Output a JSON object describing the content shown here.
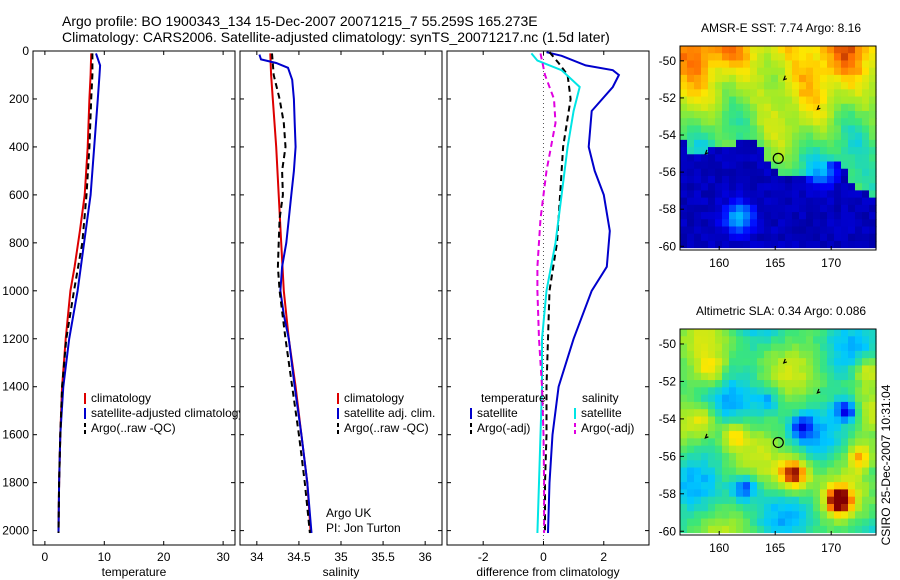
{
  "title": {
    "line1": "Argo profile: BO 1900343_134 15-Dec-2007 20071215_7 55.259S 165.273E",
    "line2": "Climatology: CARS2006. Satellite-adjusted climatology: synTS_20071217.nc (1.5d later)"
  },
  "side_label": "CSIRO 25-Dec-2007 10:31:04",
  "colors": {
    "red": "#dd0000",
    "blue": "#0000cc",
    "black": "#000000",
    "cyan": "#00e5e5",
    "magenta": "#e000e0"
  },
  "chart_data": [
    {
      "type": "line",
      "xlabel": "temperature",
      "xlim": [
        -2,
        32
      ],
      "xticks": [
        0,
        10,
        20,
        30
      ],
      "ylim": [
        2060,
        0
      ],
      "yticks": [
        0,
        200,
        400,
        600,
        800,
        1000,
        1200,
        1400,
        1600,
        1800,
        2000
      ],
      "legend": {
        "placement": "lower-left",
        "entries": [
          "climatology",
          "satellite-adjusted climatology",
          "Argo(..raw -QC)"
        ]
      },
      "series": [
        {
          "name": "climatology",
          "color": "red",
          "dash": "",
          "points": [
            [
              7.8,
              10
            ],
            [
              7.7,
              100
            ],
            [
              7.5,
              200
            ],
            [
              7.2,
              400
            ],
            [
              6.7,
              600
            ],
            [
              5.9,
              750
            ],
            [
              5.0,
              900
            ],
            [
              4.3,
              1000
            ],
            [
              3.5,
              1200
            ],
            [
              2.9,
              1400
            ],
            [
              2.6,
              1600
            ],
            [
              2.4,
              1800
            ],
            [
              2.3,
              2010
            ]
          ]
        },
        {
          "name": "satellite-adjusted climatology",
          "color": "blue",
          "dash": "",
          "points": [
            [
              8.6,
              10
            ],
            [
              9.3,
              60
            ],
            [
              9.2,
              100
            ],
            [
              8.9,
              200
            ],
            [
              8.3,
              400
            ],
            [
              7.7,
              600
            ],
            [
              6.6,
              800
            ],
            [
              5.5,
              1000
            ],
            [
              4.1,
              1200
            ],
            [
              3.1,
              1400
            ],
            [
              2.6,
              1600
            ],
            [
              2.4,
              1800
            ],
            [
              2.3,
              2010
            ]
          ]
        },
        {
          "name": "Argo(..raw -QC)",
          "color": "black",
          "dash": "6,4",
          "points": [
            [
              8.0,
              10
            ],
            [
              8.0,
              100
            ],
            [
              7.8,
              200
            ],
            [
              7.5,
              400
            ],
            [
              7.0,
              600
            ],
            [
              6.3,
              800
            ],
            [
              4.9,
              1000
            ],
            [
              3.6,
              1200
            ],
            [
              2.9,
              1400
            ],
            [
              2.6,
              1600
            ],
            [
              2.4,
              1800
            ],
            [
              2.3,
              2010
            ]
          ]
        }
      ]
    },
    {
      "type": "line",
      "xlabel": "salinity",
      "xlim": [
        33.8,
        36.2
      ],
      "xticks": [
        34,
        34.5,
        35,
        35.5,
        36
      ],
      "ylim": [
        2060,
        0
      ],
      "legend": {
        "placement": "lower-right",
        "entries": [
          "climatology",
          "satellite adj. clim.",
          "Argo(..raw -QC)"
        ]
      },
      "annotations": [
        "Argo UK",
        "PI: Jon Turton"
      ],
      "series": [
        {
          "name": "climatology",
          "color": "red",
          "dash": "",
          "points": [
            [
              34.16,
              10
            ],
            [
              34.17,
              100
            ],
            [
              34.19,
              200
            ],
            [
              34.21,
              300
            ],
            [
              34.23,
              400
            ],
            [
              34.26,
              600
            ],
            [
              34.29,
              800
            ],
            [
              34.32,
              1000
            ],
            [
              34.38,
              1200
            ],
            [
              34.46,
              1400
            ],
            [
              34.53,
              1600
            ],
            [
              34.6,
              1800
            ],
            [
              34.64,
              2010
            ]
          ]
        },
        {
          "name": "satellite adj. clim.",
          "color": "blue",
          "dash": "",
          "points": [
            [
              34.03,
              15
            ],
            [
              34.05,
              35
            ],
            [
              34.23,
              50
            ],
            [
              34.37,
              70
            ],
            [
              34.42,
              120
            ],
            [
              34.44,
              200
            ],
            [
              34.45,
              300
            ],
            [
              34.46,
              400
            ],
            [
              34.44,
              500
            ],
            [
              34.41,
              600
            ],
            [
              34.38,
              700
            ],
            [
              34.35,
              800
            ],
            [
              34.3,
              900
            ],
            [
              34.28,
              1000
            ],
            [
              34.32,
              1100
            ],
            [
              34.38,
              1200
            ],
            [
              34.45,
              1400
            ],
            [
              34.53,
              1600
            ],
            [
              34.6,
              1800
            ],
            [
              34.65,
              2010
            ]
          ]
        },
        {
          "name": "Argo(..raw -QC)",
          "color": "black",
          "dash": "6,4",
          "points": [
            [
              34.18,
              10
            ],
            [
              34.2,
              100
            ],
            [
              34.27,
              200
            ],
            [
              34.32,
              300
            ],
            [
              34.34,
              400
            ],
            [
              34.3,
              500
            ],
            [
              34.31,
              600
            ],
            [
              34.27,
              700
            ],
            [
              34.26,
              800
            ],
            [
              34.25,
              900
            ],
            [
              34.27,
              1000
            ],
            [
              34.34,
              1200
            ],
            [
              34.42,
              1400
            ],
            [
              34.5,
              1600
            ],
            [
              34.57,
              1800
            ],
            [
              34.63,
              2010
            ]
          ]
        }
      ]
    },
    {
      "type": "line",
      "xlabel": "difference from climatology",
      "xlim": [
        -3.2,
        3.5
      ],
      "xticks": [
        -2,
        0,
        2
      ],
      "ylim": [
        2060,
        0
      ],
      "legend": {
        "placement": "lower",
        "headers": [
          "temperature",
          "salinity"
        ],
        "entries": [
          "satellite",
          "Argo(-adj)",
          "satellite",
          "Argo(-adj)"
        ]
      },
      "series": [
        {
          "name": "temperature satellite",
          "color": "blue",
          "dash": "",
          "points": [
            [
              0.1,
              5
            ],
            [
              0.6,
              20
            ],
            [
              1.4,
              60
            ],
            [
              2.3,
              80
            ],
            [
              2.5,
              100
            ],
            [
              2.3,
              150
            ],
            [
              1.6,
              250
            ],
            [
              1.5,
              400
            ],
            [
              1.7,
              500
            ],
            [
              2.0,
              600
            ],
            [
              2.2,
              750
            ],
            [
              2.1,
              900
            ],
            [
              1.6,
              1000
            ],
            [
              1.0,
              1200
            ],
            [
              0.5,
              1400
            ],
            [
              0.3,
              1600
            ],
            [
              0.2,
              1800
            ],
            [
              0.15,
              2010
            ]
          ]
        },
        {
          "name": "temperature Argo(-adj)",
          "color": "black",
          "dash": "6,4",
          "points": [
            [
              0.2,
              5
            ],
            [
              0.5,
              50
            ],
            [
              0.8,
              100
            ],
            [
              0.9,
              200
            ],
            [
              0.65,
              400
            ],
            [
              0.55,
              600
            ],
            [
              0.45,
              800
            ],
            [
              0.2,
              1000
            ],
            [
              0.15,
              1200
            ],
            [
              0.1,
              1400
            ],
            [
              0.1,
              1600
            ],
            [
              0.05,
              1800
            ],
            [
              0.05,
              2010
            ]
          ]
        },
        {
          "name": "salinity satellite",
          "color": "cyan",
          "dash": "",
          "points": [
            [
              -0.4,
              10
            ],
            [
              -0.2,
              40
            ],
            [
              0.6,
              80
            ],
            [
              1.2,
              150
            ],
            [
              1.0,
              250
            ],
            [
              0.8,
              400
            ],
            [
              0.6,
              600
            ],
            [
              0.4,
              800
            ],
            [
              0.1,
              1000
            ],
            [
              -0.05,
              1200
            ],
            [
              -0.05,
              1400
            ],
            [
              -0.1,
              1600
            ],
            [
              -0.15,
              1800
            ],
            [
              -0.2,
              2010
            ]
          ]
        },
        {
          "name": "salinity Argo(-adj)",
          "color": "magenta",
          "dash": "6,4",
          "points": [
            [
              -0.1,
              10
            ],
            [
              0.05,
              100
            ],
            [
              0.35,
              200
            ],
            [
              0.4,
              300
            ],
            [
              0.1,
              500
            ],
            [
              -0.1,
              700
            ],
            [
              -0.2,
              900
            ],
            [
              -0.2,
              1000
            ],
            [
              -0.15,
              1200
            ],
            [
              -0.05,
              1400
            ],
            [
              0.0,
              1600
            ],
            [
              0.02,
              1800
            ],
            [
              0.02,
              2010
            ]
          ]
        }
      ]
    },
    {
      "type": "heatmap",
      "title": "AMSR-E SST: 7.74 Argo: 8.16",
      "xlim": [
        156.5,
        174
      ],
      "ylim": [
        -60.2,
        -49.2
      ],
      "xticks": [
        160,
        165,
        170
      ],
      "yticks": [
        -50,
        -52,
        -54,
        -56,
        -58,
        -60
      ],
      "marker": {
        "lon": 165.273,
        "lat": -55.259
      }
    },
    {
      "type": "heatmap",
      "title": "Altimetric SLA: 0.34 Argo: 0.086",
      "xlim": [
        156.5,
        174
      ],
      "ylim": [
        -60.2,
        -49.2
      ],
      "xticks": [
        160,
        165,
        170
      ],
      "yticks": [
        -50,
        -52,
        -54,
        -56,
        -58,
        -60
      ],
      "marker": {
        "lon": 165.273,
        "lat": -55.259
      }
    }
  ]
}
